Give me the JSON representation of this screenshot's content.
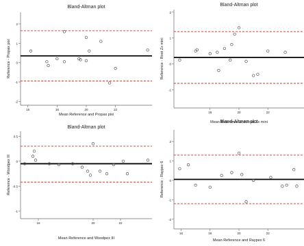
{
  "chart_data": [
    {
      "type": "scatter",
      "title": "Bland-Altman plot",
      "xlabel": "Mean Reference and Propax pixi",
      "ylabel": "Reference - Propax pixi",
      "xlim": [
        15.5,
        24.5
      ],
      "ylim": [
        -2.2,
        2.6
      ],
      "xticks": [
        16,
        18,
        20,
        22
      ],
      "yticks": [
        -2,
        -1,
        0,
        1,
        2
      ],
      "mean_line": 0.35,
      "upper_loa": 1.65,
      "lower_loa": -0.95,
      "points": [
        [
          16.2,
          0.6
        ],
        [
          17.3,
          0.05
        ],
        [
          17.4,
          -0.15
        ],
        [
          18.0,
          0.2
        ],
        [
          18.5,
          1.6
        ],
        [
          18.5,
          0.05
        ],
        [
          19.5,
          0.2
        ],
        [
          19.6,
          0.15
        ],
        [
          20.0,
          1.3
        ],
        [
          20.0,
          0.1
        ],
        [
          20.2,
          0.6
        ],
        [
          21.0,
          1.1
        ],
        [
          21.6,
          -1.05
        ],
        [
          22.0,
          -0.3
        ],
        [
          24.2,
          0.65
        ]
      ],
      "grid": false
    },
    {
      "type": "scatter",
      "title": "Bland-Altman plot",
      "xlabel": "Mean Reference and Root Zx mini",
      "ylabel": "Reference - Root Zx mini",
      "xlim": [
        15.5,
        24.5
      ],
      "ylim": [
        -1.7,
        2.1
      ],
      "xticks": [
        18,
        20,
        22
      ],
      "yticks": [
        -1,
        0,
        1,
        2
      ],
      "mean_line": 0.25,
      "upper_loa": 1.25,
      "lower_loa": -0.75,
      "points": [
        [
          15.9,
          0.15
        ],
        [
          17.0,
          0.5
        ],
        [
          17.1,
          0.55
        ],
        [
          18.0,
          0.4
        ],
        [
          18.5,
          0.45
        ],
        [
          18.6,
          -0.25
        ],
        [
          19.0,
          0.6
        ],
        [
          19.4,
          0.15
        ],
        [
          19.5,
          0.75
        ],
        [
          19.7,
          1.15
        ],
        [
          20.0,
          1.4
        ],
        [
          20.5,
          0.1
        ],
        [
          21.0,
          -0.45
        ],
        [
          21.3,
          -0.4
        ],
        [
          22.0,
          0.5
        ],
        [
          23.2,
          0.45
        ]
      ],
      "grid": false
    },
    {
      "type": "scatter",
      "title": "Bland-Altman plot",
      "xlabel": "Mean Reference and Woodpex III",
      "ylabel": "Reference - Woodpex III",
      "xlim": [
        14.7,
        24.3
      ],
      "ylim": [
        -1.15,
        0.6
      ],
      "xticks": [
        16,
        20,
        22
      ],
      "yticks": [
        -1.0,
        -0.5,
        0.0,
        0.5
      ],
      "mean_line": -0.05,
      "upper_loa": 0.3,
      "lower_loa": -0.42,
      "points": [
        [
          15.0,
          -0.05
        ],
        [
          15.6,
          0.1
        ],
        [
          15.7,
          0.2
        ],
        [
          15.8,
          0.02
        ],
        [
          16.8,
          -0.05
        ],
        [
          17.5,
          -0.07
        ],
        [
          18.5,
          -0.05
        ],
        [
          19.2,
          -0.12
        ],
        [
          19.6,
          -0.2
        ],
        [
          19.8,
          -0.28
        ],
        [
          20.0,
          0.35
        ],
        [
          20.5,
          -0.2
        ],
        [
          21.0,
          -0.25
        ],
        [
          21.5,
          -0.07
        ],
        [
          22.2,
          0.0
        ],
        [
          22.5,
          -0.25
        ],
        [
          24.0,
          0.02
        ]
      ],
      "grid": false
    },
    {
      "type": "scatter",
      "title": "Bland-Altman plot",
      "xlabel": "Mean Reference and Raypex 6",
      "ylabel": "Reference - Raypex 6",
      "xlim": [
        15.5,
        24.5
      ],
      "ylim": [
        -2.5,
        2.6
      ],
      "xticks": [
        16,
        18,
        20,
        22
      ],
      "yticks": [
        -2,
        -1,
        0,
        1,
        2
      ],
      "mean_line": 0.05,
      "upper_loa": 1.3,
      "lower_loa": -1.2,
      "points": [
        [
          15.9,
          0.6
        ],
        [
          16.5,
          0.8
        ],
        [
          17.0,
          -0.25
        ],
        [
          18.0,
          -0.35
        ],
        [
          18.8,
          0.25
        ],
        [
          19.5,
          0.4
        ],
        [
          20.0,
          1.4
        ],
        [
          20.2,
          0.3
        ],
        [
          20.5,
          -1.1
        ],
        [
          21.0,
          0.0
        ],
        [
          22.2,
          0.15
        ],
        [
          23.0,
          -0.3
        ],
        [
          23.3,
          -0.25
        ],
        [
          24.0,
          -0.3
        ],
        [
          23.8,
          0.55
        ]
      ],
      "grid": false
    }
  ],
  "colors": {
    "mean_line": "#000000",
    "loa_line": "#c0392b",
    "points": "#555555",
    "axis": "#666666",
    "text": "#222222"
  }
}
